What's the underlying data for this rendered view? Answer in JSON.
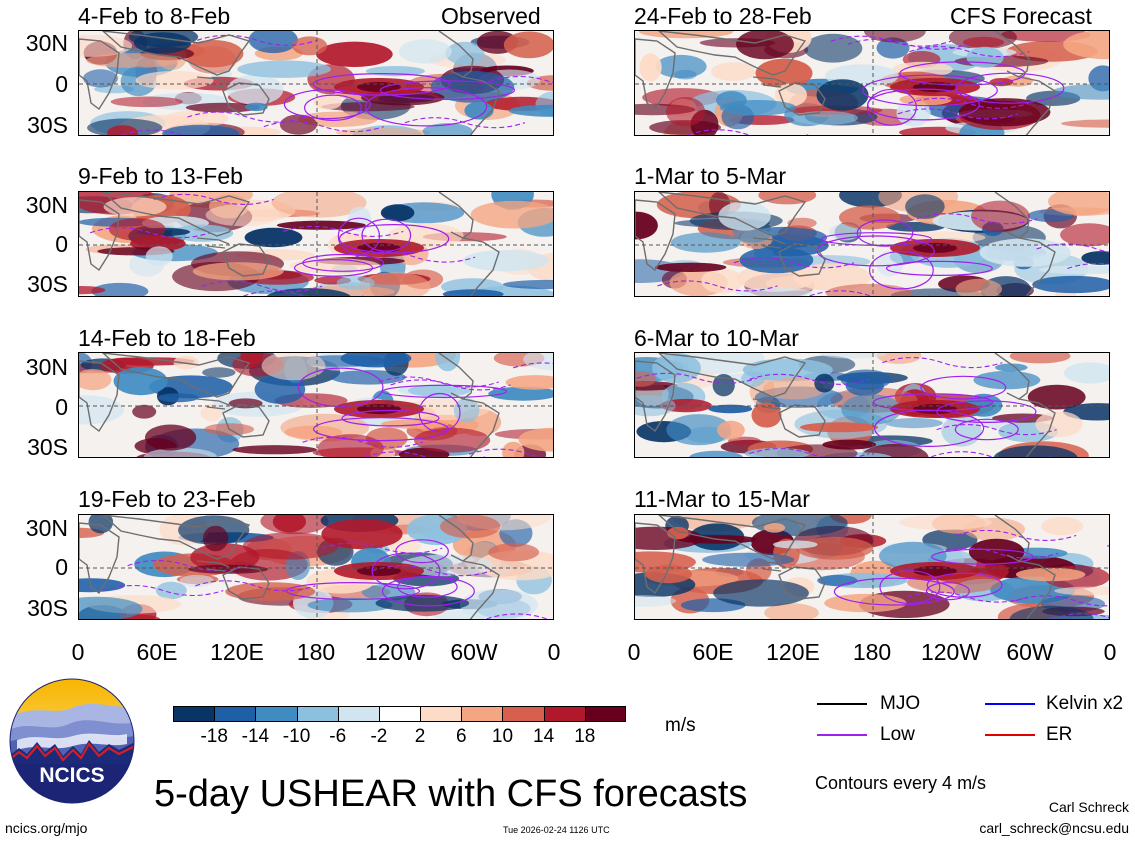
{
  "panels_left": [
    {
      "date": "4-Feb to 8-Feb",
      "tag": "Observed"
    },
    {
      "date": "9-Feb to 13-Feb",
      "tag": ""
    },
    {
      "date": "14-Feb to 18-Feb",
      "tag": ""
    },
    {
      "date": "19-Feb to 23-Feb",
      "tag": ""
    }
  ],
  "panels_right": [
    {
      "date": "24-Feb to 28-Feb",
      "tag": "CFS Forecast"
    },
    {
      "date": "1-Mar to 5-Mar",
      "tag": ""
    },
    {
      "date": "6-Mar to 10-Mar",
      "tag": ""
    },
    {
      "date": "11-Mar to 15-Mar",
      "tag": ""
    }
  ],
  "lat_labels": [
    "30N",
    "0",
    "30S"
  ],
  "lon_labels": [
    "0",
    "60E",
    "120E",
    "180",
    "120W",
    "60W",
    "0"
  ],
  "colorbar": {
    "colors": [
      "#083466",
      "#1f5fa8",
      "#3f8bc2",
      "#8cc0df",
      "#d1e5f0",
      "#ffffff",
      "#fddbc7",
      "#f4a582",
      "#d6604d",
      "#b2182b",
      "#67001f"
    ],
    "labels": [
      "-18",
      "-14",
      "-10",
      "-6",
      "-2",
      "2",
      "6",
      "10",
      "14",
      "18"
    ],
    "units": "m/s"
  },
  "legend": {
    "mjo": "MJO",
    "kelvin": "Kelvin x2",
    "low": "Low",
    "er": "ER",
    "colors": {
      "mjo": "#000000",
      "kelvin": "#0000ff",
      "low": "#a020f0",
      "er": "#e00000"
    }
  },
  "contour_note": "Contours every 4 m/s",
  "title": "5-day USHEAR with CFS forecasts",
  "logo_text": "NCICS",
  "url": "ncics.org/mjo",
  "timestamp": "Tue 2026-02-24 1126 UTC",
  "author": "Carl Schreck",
  "email": "carl_schreck@ncsu.edu"
}
